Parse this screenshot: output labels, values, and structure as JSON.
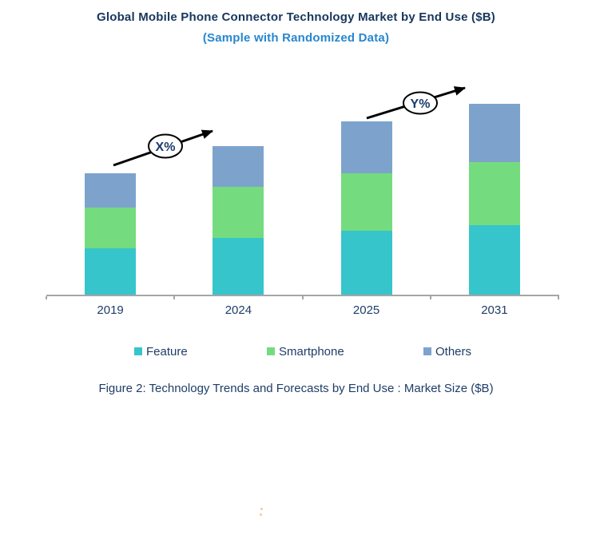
{
  "page": {
    "title": "Global Mobile Phone Connector Technology Market by End Use ($B)",
    "subtitle": "(Sample with Randomized Data)",
    "caption": "Figure 2: Technology Trends and Forecasts by End Use : Market Size ($B)"
  },
  "colors": {
    "title_navy": "#17365D",
    "subtitle_blue": "#2787CE",
    "text_navy": "#1F3D68",
    "axis_gray": "#A6A6A6",
    "feature_teal": "#36C5CB",
    "smartphone_green": "#74DC7E",
    "others_blue": "#7DA3CD",
    "arrow_black": "#000000"
  },
  "chart_data": {
    "type": "bar",
    "stacked": true,
    "title": "Global Mobile Phone Connector Technology Market by End Use ($B)",
    "categories": [
      "2019",
      "2024",
      "2025",
      "2031"
    ],
    "series": [
      {
        "name": "Feature",
        "color": "#36C5CB",
        "values": [
          59,
          72,
          81,
          88
        ]
      },
      {
        "name": "Smartphone",
        "color": "#74DC7E",
        "values": [
          51,
          64,
          72,
          79
        ]
      },
      {
        "name": "Others",
        "color": "#7DA3CD",
        "values": [
          43,
          51,
          65,
          73
        ]
      }
    ],
    "totals": [
      153,
      187,
      218,
      240
    ],
    "value_units": "relative market size (y-axis unlabeled; randomized sample data)",
    "xlabel": "",
    "ylabel": "",
    "y_axis_visible": false,
    "grid": false,
    "legend_position": "bottom",
    "annotations": [
      {
        "label": "X%",
        "type": "growth-arrow",
        "from_category": "2019",
        "to_category": "2024"
      },
      {
        "label": "Y%",
        "type": "growth-arrow",
        "from_category": "2025",
        "to_category": "2031"
      }
    ]
  }
}
